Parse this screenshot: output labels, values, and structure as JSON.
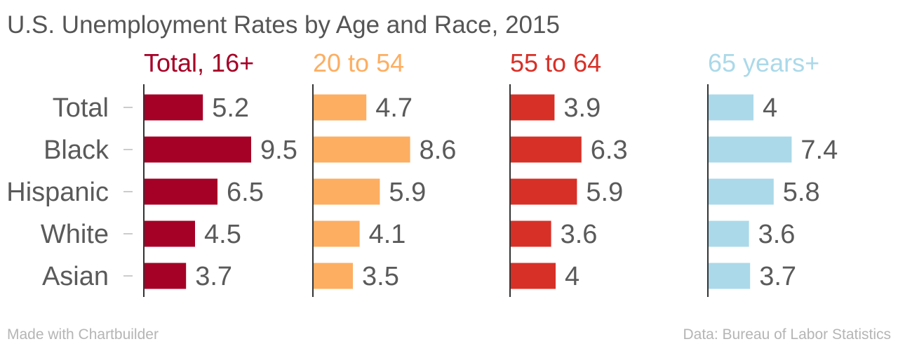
{
  "chart_data": {
    "type": "bar",
    "orientation": "horizontal",
    "layout": "small-multiples",
    "title": "U.S. Unemployment Rates by Age and Race, 2015",
    "categories": [
      "Total",
      "Black",
      "Hispanic",
      "White",
      "Asian"
    ],
    "series": [
      {
        "name": "Total, 16+",
        "color": "#a50026",
        "values": [
          5.2,
          9.5,
          6.5,
          4.5,
          3.7
        ]
      },
      {
        "name": "20 to 54",
        "color": "#fdae61",
        "values": [
          4.7,
          8.6,
          5.9,
          4.1,
          3.5
        ]
      },
      {
        "name": "55 to 64",
        "color": "#d73027",
        "values": [
          3.9,
          6.3,
          5.9,
          3.6,
          4
        ]
      },
      {
        "name": "65 years+",
        "color": "#abd9e9",
        "values": [
          4,
          7.4,
          5.8,
          3.6,
          3.7
        ]
      }
    ],
    "xlim": [
      0,
      15
    ],
    "grid": false
  },
  "footer": {
    "left": "Made with Chartbuilder",
    "right": "Data: Bureau of Labor Statistics"
  }
}
